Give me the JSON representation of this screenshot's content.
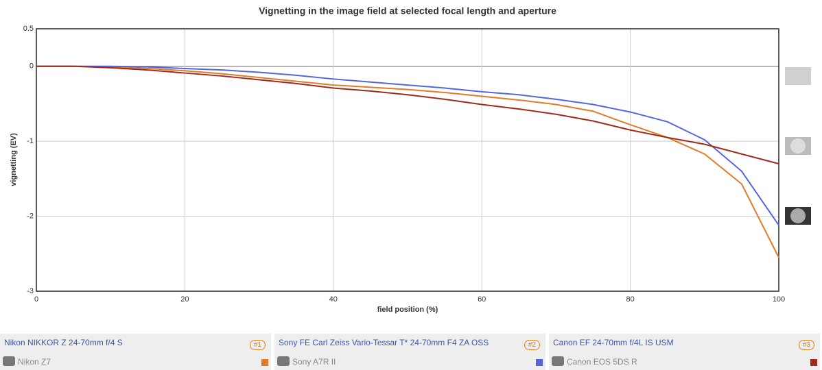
{
  "chart_data": {
    "type": "line",
    "title": "Vignetting in the image field at selected focal length and aperture",
    "x_label": "field position (%)",
    "y_label": "vignetting (EV)",
    "x": [
      0,
      5,
      10,
      15,
      20,
      25,
      30,
      35,
      40,
      45,
      50,
      55,
      60,
      65,
      70,
      75,
      80,
      85,
      90,
      95,
      100
    ],
    "series": [
      {
        "name": "Nikon NIKKOR Z 24-70mm f/4 S",
        "camera": "Nikon Z7",
        "badge": "#1",
        "color": "#e07b2a",
        "values": [
          0,
          0,
          -0.01,
          -0.03,
          -0.06,
          -0.1,
          -0.15,
          -0.2,
          -0.25,
          -0.28,
          -0.31,
          -0.35,
          -0.4,
          -0.45,
          -0.51,
          -0.6,
          -0.78,
          -0.95,
          -1.17,
          -1.57,
          -2.55
        ]
      },
      {
        "name": "Sony FE Carl Zeiss Vario-Tessar T* 24-70mm F4 ZA OSS",
        "camera": "Sony A7R II",
        "badge": "#2",
        "color": "#5566dd",
        "values": [
          0,
          0,
          0,
          -0.01,
          -0.03,
          -0.05,
          -0.08,
          -0.12,
          -0.17,
          -0.21,
          -0.25,
          -0.29,
          -0.34,
          -0.38,
          -0.44,
          -0.51,
          -0.61,
          -0.74,
          -0.98,
          -1.4,
          -2.12
        ]
      },
      {
        "name": "Canon EF 24-70mm f/4L IS USM",
        "camera": "Canon EOS 5DS R",
        "badge": "#3",
        "color": "#a02a1a",
        "values": [
          0,
          0,
          -0.02,
          -0.05,
          -0.09,
          -0.13,
          -0.18,
          -0.23,
          -0.29,
          -0.33,
          -0.38,
          -0.44,
          -0.51,
          -0.57,
          -0.64,
          -0.73,
          -0.85,
          -0.95,
          -1.04,
          -1.17,
          -1.3
        ]
      }
    ],
    "xlim": [
      0,
      100
    ],
    "xticks": [
      0,
      20,
      40,
      60,
      80,
      100
    ],
    "ylim": [
      -3,
      0.5
    ],
    "yticks": [
      0.5,
      0,
      -1,
      -2,
      -3
    ],
    "grid": true
  }
}
